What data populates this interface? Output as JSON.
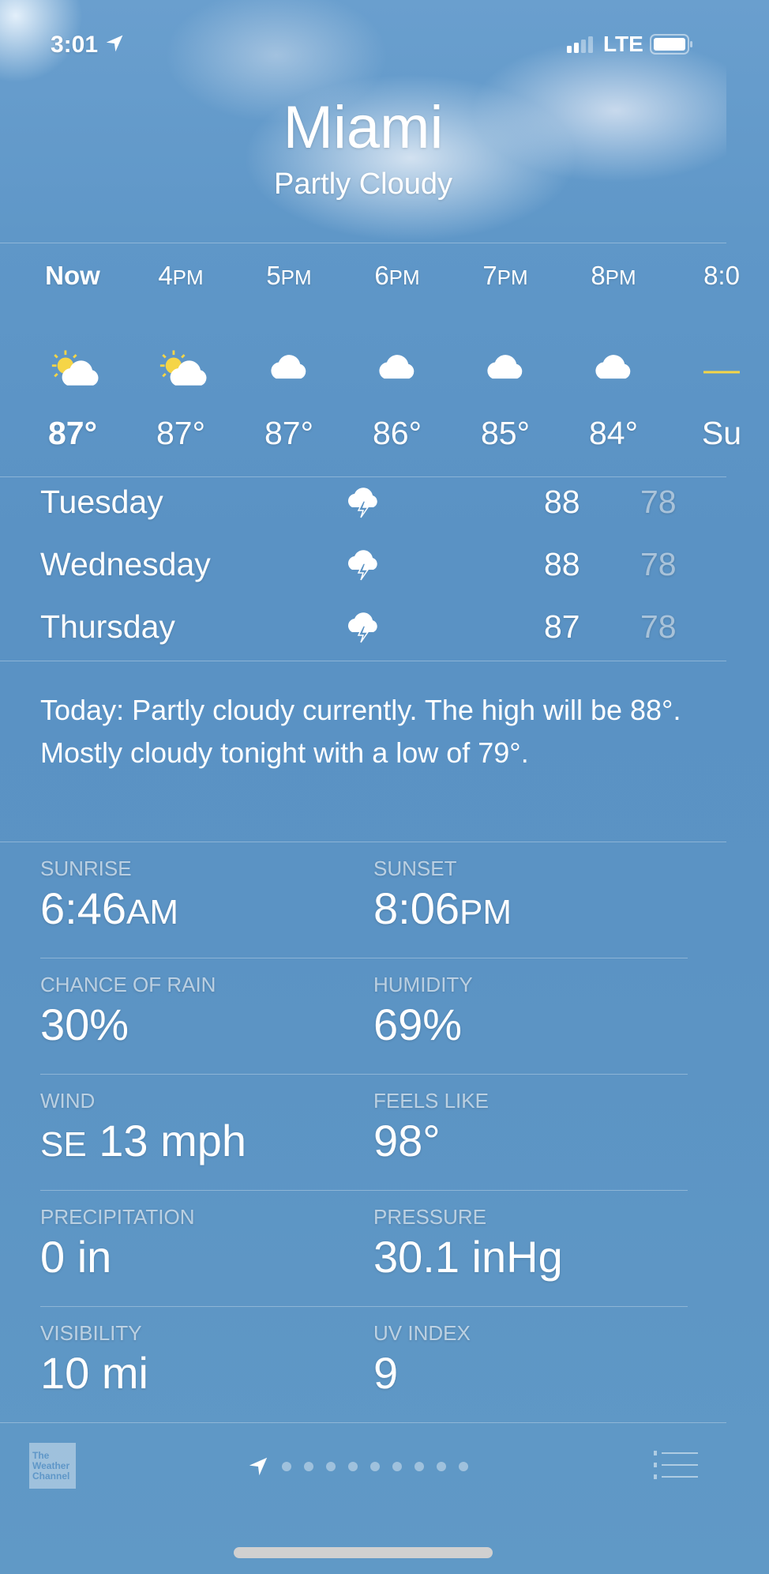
{
  "status": {
    "time": "3:01",
    "network": "LTE"
  },
  "header": {
    "city": "Miami",
    "condition": "Partly Cloudy"
  },
  "hourly": [
    {
      "label": "Now",
      "suffix": "",
      "icon": "partly-cloudy-icon",
      "temp": "87°"
    },
    {
      "label": "4",
      "suffix": "PM",
      "icon": "partly-cloudy-icon",
      "temp": "87°"
    },
    {
      "label": "5",
      "suffix": "PM",
      "icon": "cloud-icon",
      "temp": "87°"
    },
    {
      "label": "6",
      "suffix": "PM",
      "icon": "cloud-icon",
      "temp": "86°"
    },
    {
      "label": "7",
      "suffix": "PM",
      "icon": "cloud-icon",
      "temp": "85°"
    },
    {
      "label": "8",
      "suffix": "PM",
      "icon": "cloud-icon",
      "temp": "84°"
    },
    {
      "label": "8:0",
      "suffix": "",
      "icon": "sunset-icon",
      "temp": "Su"
    }
  ],
  "daily": [
    {
      "day": "Tuesday",
      "icon": "thunderstorm-icon",
      "high": "88",
      "low": "78"
    },
    {
      "day": "Wednesday",
      "icon": "thunderstorm-icon",
      "high": "88",
      "low": "78"
    },
    {
      "day": "Thursday",
      "icon": "thunderstorm-icon",
      "high": "87",
      "low": "78"
    }
  ],
  "summary": "Today: Partly cloudy currently. The high will be 88°. Mostly cloudy tonight with a low of 79°.",
  "details": [
    {
      "label": "SUNRISE",
      "value": "6:46",
      "unit": "AM"
    },
    {
      "label": "SUNSET",
      "value": "8:06",
      "unit": "PM"
    },
    {
      "label": "CHANCE OF RAIN",
      "value": "30%",
      "unit": ""
    },
    {
      "label": "HUMIDITY",
      "value": "69%",
      "unit": ""
    },
    {
      "label": "WIND",
      "value": "13 mph",
      "unit": "SE"
    },
    {
      "label": "FEELS LIKE",
      "value": "98°",
      "unit": ""
    },
    {
      "label": "PRECIPITATION",
      "value": "0 in",
      "unit": ""
    },
    {
      "label": "PRESSURE",
      "value": "30.1 inHg",
      "unit": ""
    },
    {
      "label": "VISIBILITY",
      "value": "10 mi",
      "unit": ""
    },
    {
      "label": "UV INDEX",
      "value": "9",
      "unit": ""
    }
  ],
  "footer": {
    "logo": "The Weather Channel",
    "page_count": 9
  }
}
